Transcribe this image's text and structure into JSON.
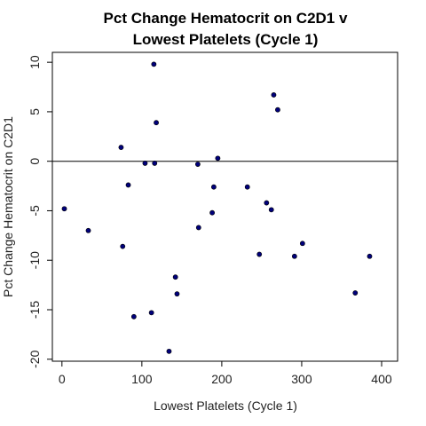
{
  "chart_data": {
    "type": "scatter",
    "title_lines": [
      "Pct Change Hematocrit on C2D1 v",
      "Lowest Platelets (Cycle 1)"
    ],
    "xlabel": "Lowest Platelets (Cycle 1)",
    "ylabel": "Pct Change Hematocrit on C2D1",
    "xlim": [
      -12,
      420
    ],
    "ylim": [
      -20.2,
      11
    ],
    "xticks": [
      0,
      100,
      200,
      300,
      400
    ],
    "yticks": [
      -20,
      -15,
      -10,
      -5,
      0,
      5,
      10
    ],
    "reference_line_y": 0,
    "point_color": "#00007a",
    "points": [
      {
        "x": 3,
        "y": -4.8
      },
      {
        "x": 33,
        "y": -7.0
      },
      {
        "x": 74,
        "y": 1.4
      },
      {
        "x": 76,
        "y": -8.6
      },
      {
        "x": 83,
        "y": -2.4
      },
      {
        "x": 90,
        "y": -15.7
      },
      {
        "x": 104,
        "y": -0.2
      },
      {
        "x": 112,
        "y": -15.3
      },
      {
        "x": 115,
        "y": 9.8
      },
      {
        "x": 116,
        "y": -0.2
      },
      {
        "x": 118,
        "y": 3.9
      },
      {
        "x": 134,
        "y": -19.2
      },
      {
        "x": 142,
        "y": -11.7
      },
      {
        "x": 144,
        "y": -13.4
      },
      {
        "x": 170,
        "y": -0.3
      },
      {
        "x": 171,
        "y": -6.7
      },
      {
        "x": 188,
        "y": -5.2
      },
      {
        "x": 190,
        "y": -2.6
      },
      {
        "x": 195,
        "y": 0.3
      },
      {
        "x": 232,
        "y": -2.6
      },
      {
        "x": 247,
        "y": -9.4
      },
      {
        "x": 256,
        "y": -4.2
      },
      {
        "x": 262,
        "y": -4.9
      },
      {
        "x": 265,
        "y": 6.7
      },
      {
        "x": 270,
        "y": 5.2
      },
      {
        "x": 291,
        "y": -9.6
      },
      {
        "x": 301,
        "y": -8.3
      },
      {
        "x": 367,
        "y": -13.3
      },
      {
        "x": 385,
        "y": -9.6
      }
    ]
  }
}
